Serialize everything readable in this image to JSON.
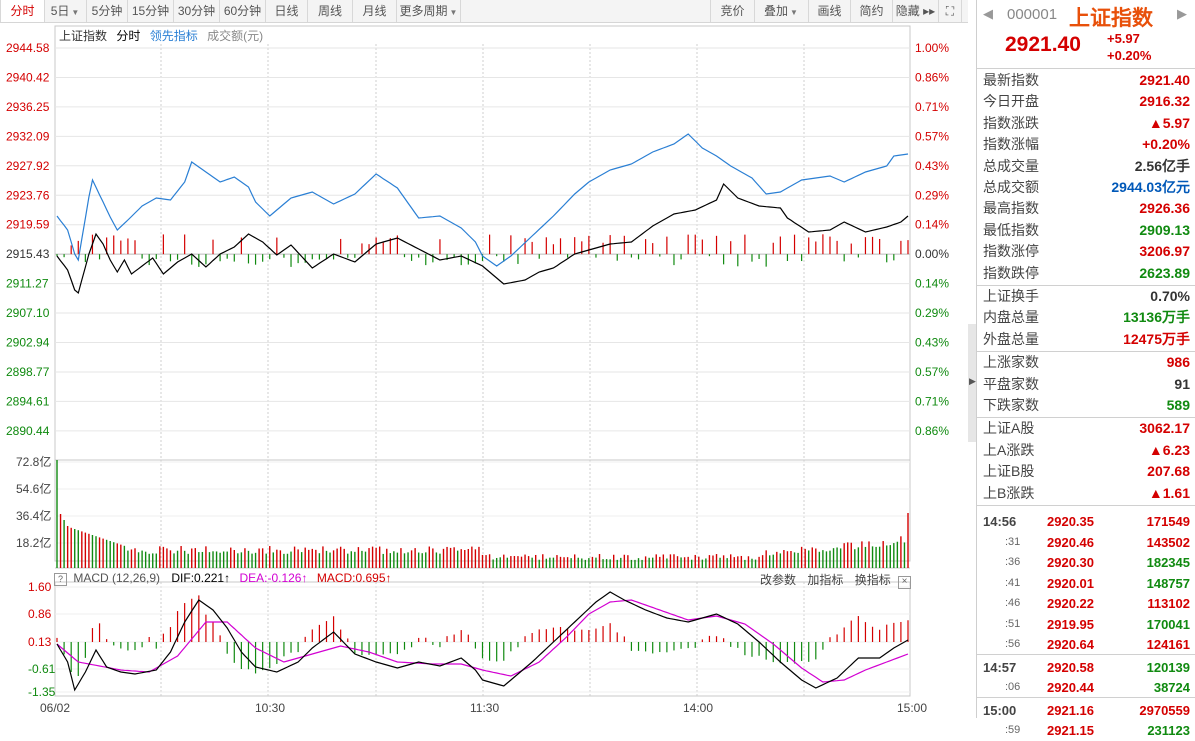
{
  "toolbar": {
    "left": [
      {
        "label": "分时",
        "active": true
      },
      {
        "label": "5日",
        "dropdown": true
      },
      {
        "label": "5分钟"
      },
      {
        "label": "15分钟"
      },
      {
        "label": "30分钟"
      },
      {
        "label": "60分钟"
      },
      {
        "label": "日线"
      },
      {
        "label": "周线"
      },
      {
        "label": "月线"
      },
      {
        "label": "更多周期",
        "dropdown": true
      }
    ],
    "right": [
      {
        "label": "竞价"
      },
      {
        "label": "叠加",
        "dropdown": true
      },
      {
        "label": "画线"
      },
      {
        "label": "简约"
      },
      {
        "label": "隐藏 ▸▸"
      }
    ]
  },
  "legend": {
    "name": "上证指数",
    "mode": "分时",
    "lead": "领先指标",
    "vol_label": "成交额(元)"
  },
  "price_axis": {
    "left": [
      "2944.58",
      "2940.42",
      "2936.25",
      "2932.09",
      "2927.92",
      "2923.76",
      "2919.59",
      "2915.43",
      "2911.27",
      "2907.10",
      "2902.94",
      "2898.77",
      "2894.61",
      "2890.44"
    ],
    "right": [
      "1.00%",
      "0.86%",
      "0.71%",
      "0.57%",
      "0.43%",
      "0.29%",
      "0.14%",
      "0.00%",
      "0.14%",
      "0.29%",
      "0.43%",
      "0.57%",
      "0.71%",
      "0.86%"
    ]
  },
  "volume_axis": [
    "72.8亿",
    "54.6亿",
    "36.4亿",
    "18.2亿"
  ],
  "macd": {
    "label": "MACD (12,26,9)",
    "dif": "DIF:0.221↑",
    "dea": "DEA:-0.126↑",
    "val": "MACD:0.695↑",
    "buttons": [
      "改参数",
      "加指标",
      "换指标"
    ],
    "axis": [
      "1.60",
      "0.86",
      "0.13",
      "-0.61",
      "-1.35"
    ]
  },
  "time_axis": [
    "06/02",
    "10:30",
    "11:30",
    "14:00",
    "15:00"
  ],
  "colors": {
    "up": "#d40000",
    "down": "#108a10",
    "price": "#000000",
    "lead": "#2a7fd4",
    "dea": "#d200d2"
  },
  "quote": {
    "code": "000001",
    "name": "上证指数",
    "price": "2921.40",
    "change": "+5.97",
    "pct": "+0.20%"
  },
  "stats": [
    {
      "k": "最新指数",
      "v": "2921.40",
      "c": "red"
    },
    {
      "k": "今日开盘",
      "v": "2916.32",
      "c": "red"
    },
    {
      "k": "指数涨跌",
      "v": "▲5.97",
      "c": "red"
    },
    {
      "k": "指数涨幅",
      "v": "+0.20%",
      "c": "red"
    },
    {
      "k": "总成交量",
      "v": "2.56亿手",
      "c": "dark"
    },
    {
      "k": "总成交额",
      "v": "2944.03亿元",
      "c": "blue"
    },
    {
      "k": "最高指数",
      "v": "2926.36",
      "c": "red"
    },
    {
      "k": "最低指数",
      "v": "2909.13",
      "c": "green"
    },
    {
      "k": "指数涨停",
      "v": "3206.97",
      "c": "red"
    },
    {
      "k": "指数跌停",
      "v": "2623.89",
      "c": "green"
    }
  ],
  "stats2": [
    {
      "k": "上证换手",
      "v": "0.70%",
      "c": "dark"
    },
    {
      "k": "内盘总量",
      "v": "13136万手",
      "c": "green"
    },
    {
      "k": "外盘总量",
      "v": "12475万手",
      "c": "red"
    }
  ],
  "stats3": [
    {
      "k": "上涨家数",
      "v": "986",
      "c": "red"
    },
    {
      "k": "平盘家数",
      "v": "91",
      "c": "dark"
    },
    {
      "k": "下跌家数",
      "v": "589",
      "c": "green"
    }
  ],
  "stats4": [
    {
      "k": "上证A股",
      "v": "3062.17",
      "c": "red"
    },
    {
      "k": "上A涨跌",
      "v": "▲6.23",
      "c": "red"
    },
    {
      "k": "上证B股",
      "v": "207.68",
      "c": "red"
    },
    {
      "k": "上B涨跌",
      "v": "▲1.61",
      "c": "red"
    }
  ],
  "ticks": [
    {
      "t": "14:56",
      "p": "2920.35",
      "q": "171549",
      "pc": "red",
      "qc": "red"
    },
    {
      "t": ":31",
      "p": "2920.46",
      "q": "143502",
      "pc": "red",
      "qc": "red"
    },
    {
      "t": ":36",
      "p": "2920.30",
      "q": "182345",
      "pc": "red",
      "qc": "green"
    },
    {
      "t": ":41",
      "p": "2920.01",
      "q": "148757",
      "pc": "red",
      "qc": "green"
    },
    {
      "t": ":46",
      "p": "2920.22",
      "q": "113102",
      "pc": "red",
      "qc": "red"
    },
    {
      "t": ":51",
      "p": "2919.95",
      "q": "170041",
      "pc": "red",
      "qc": "green"
    },
    {
      "t": ":56",
      "p": "2920.64",
      "q": "124161",
      "pc": "red",
      "qc": "red"
    },
    {
      "t": "14:57",
      "p": "2920.58",
      "q": "120139",
      "pc": "red",
      "qc": "green"
    },
    {
      "t": ":06",
      "p": "2920.44",
      "q": "38724",
      "pc": "red",
      "qc": "green"
    },
    {
      "t": "15:00",
      "p": "2921.16",
      "q": "2970559",
      "pc": "red",
      "qc": "red"
    },
    {
      "t": ":59",
      "p": "2921.15",
      "q": "231123",
      "pc": "red",
      "qc": "green"
    }
  ]
}
